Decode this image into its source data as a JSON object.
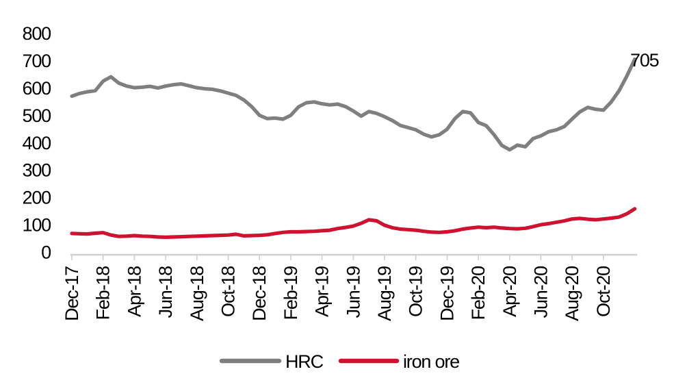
{
  "chart_data": {
    "type": "line",
    "title": "",
    "xlabel": "",
    "ylabel": "",
    "ylim": [
      0,
      800
    ],
    "y_ticks": [
      0,
      100,
      200,
      300,
      400,
      500,
      600,
      700,
      800
    ],
    "y_tick_labels": [
      "0",
      "100",
      "200",
      "300",
      "400",
      "500",
      "600",
      "700",
      "800"
    ],
    "x_tick_labels": [
      "Dec-17",
      "Feb-18",
      "Apr-18",
      "Jun-18",
      "Aug-18",
      "Oct-18",
      "Dec-18",
      "Feb-19",
      "Apr-19",
      "Jun-19",
      "Aug-19",
      "Oct-19",
      "Dec-19",
      "Feb-20",
      "Apr-20",
      "Jun-20",
      "Aug-20",
      "Oct-20"
    ],
    "x_tick_month_index": [
      0,
      2,
      4,
      6,
      8,
      10,
      12,
      14,
      16,
      18,
      20,
      22,
      24,
      26,
      28,
      30,
      32,
      34
    ],
    "x_axis_note": "month index 0 = Dec-17; series sampled every 0.5 month, ending Dec-20",
    "x_start": 0,
    "x_step": 0.5,
    "grid": false,
    "legend_position": "bottom",
    "end_label": {
      "series": "HRC",
      "text": "705",
      "value": 705
    },
    "series": [
      {
        "name": "HRC",
        "color": "#7F7F7F",
        "values": [
          570,
          580,
          586,
          590,
          625,
          641,
          618,
          607,
          601,
          603,
          606,
          600,
          607,
          612,
          615,
          608,
          601,
          597,
          595,
          589,
          581,
          573,
          556,
          532,
          500,
          488,
          490,
          486,
          500,
          531,
          546,
          549,
          542,
          538,
          541,
          532,
          516,
          497,
          514,
          507,
          495,
          481,
          463,
          455,
          447,
          431,
          421,
          429,
          449,
          488,
          514,
          509,
          474,
          462,
          429,
          390,
          374,
          391,
          385,
          415,
          425,
          440,
          447,
          459,
          487,
          513,
          529,
          522,
          519,
          549,
          590,
          644,
          705
        ]
      },
      {
        "name": "iron ore",
        "color": "#CE1230",
        "values": [
          68,
          67,
          66,
          69,
          71,
          62,
          57,
          58,
          60,
          58,
          57,
          55,
          54,
          55,
          56,
          57,
          58,
          59,
          60,
          61,
          62,
          65,
          59,
          60,
          61,
          63,
          68,
          72,
          74,
          74,
          75,
          76,
          78,
          80,
          86,
          90,
          95,
          105,
          118,
          114,
          98,
          89,
          84,
          82,
          80,
          76,
          73,
          72,
          74,
          78,
          84,
          88,
          91,
          89,
          91,
          88,
          86,
          85,
          87,
          93,
          100,
          104,
          109,
          114,
          121,
          123,
          120,
          118,
          121,
          124,
          128,
          140,
          158
        ]
      }
    ]
  },
  "legend": {
    "items": [
      {
        "label": "HRC",
        "color": "#7F7F7F"
      },
      {
        "label": "iron ore",
        "color": "#CE1230"
      }
    ]
  },
  "colors": {
    "background": "#FFFFFF",
    "axis": "#CFCFCF",
    "text": "#000000",
    "hrc_line": "#7F7F7F",
    "iron_ore_line": "#CE1230"
  }
}
